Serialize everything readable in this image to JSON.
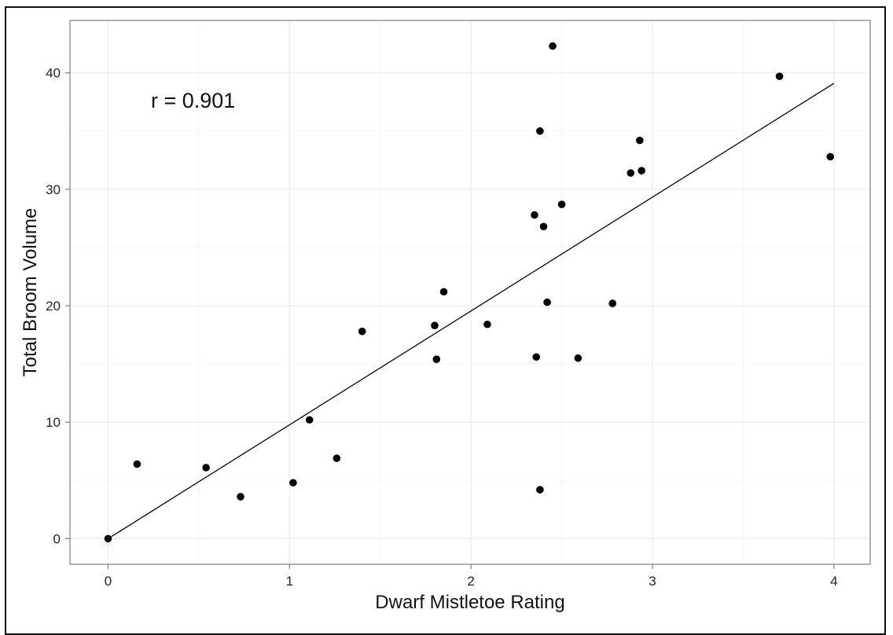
{
  "chart_data": {
    "type": "scatter",
    "title": "",
    "xlabel": "Dwarf Mistletoe Rating",
    "ylabel": "Total Broom Volume",
    "xlim": [
      -0.21,
      4.2
    ],
    "ylim": [
      -2.2,
      44.5
    ],
    "x_ticks": [
      0,
      1,
      2,
      3,
      4
    ],
    "y_ticks": [
      0,
      10,
      20,
      30,
      40
    ],
    "grid": true,
    "annotation": "r = 0.901",
    "points": [
      {
        "x": 0.0,
        "y": 0.0
      },
      {
        "x": 0.16,
        "y": 6.4
      },
      {
        "x": 0.54,
        "y": 6.1
      },
      {
        "x": 0.73,
        "y": 3.6
      },
      {
        "x": 1.02,
        "y": 4.8
      },
      {
        "x": 1.11,
        "y": 10.2
      },
      {
        "x": 1.26,
        "y": 6.9
      },
      {
        "x": 1.4,
        "y": 17.8
      },
      {
        "x": 1.8,
        "y": 18.3
      },
      {
        "x": 1.81,
        "y": 15.4
      },
      {
        "x": 1.85,
        "y": 21.2
      },
      {
        "x": 2.09,
        "y": 18.4
      },
      {
        "x": 2.35,
        "y": 27.8
      },
      {
        "x": 2.36,
        "y": 15.6
      },
      {
        "x": 2.38,
        "y": 35.0
      },
      {
        "x": 2.38,
        "y": 4.2
      },
      {
        "x": 2.4,
        "y": 26.8
      },
      {
        "x": 2.42,
        "y": 20.3
      },
      {
        "x": 2.45,
        "y": 42.3
      },
      {
        "x": 2.5,
        "y": 28.7
      },
      {
        "x": 2.59,
        "y": 15.5
      },
      {
        "x": 2.78,
        "y": 20.2
      },
      {
        "x": 2.88,
        "y": 31.4
      },
      {
        "x": 2.93,
        "y": 34.2
      },
      {
        "x": 2.94,
        "y": 31.6
      },
      {
        "x": 3.7,
        "y": 39.7
      },
      {
        "x": 3.98,
        "y": 32.8
      }
    ],
    "fit_line": {
      "x": [
        0,
        4
      ],
      "y": [
        0,
        39.1
      ]
    }
  },
  "colors": {
    "point": "#000000",
    "line": "#000000",
    "grid_major": "#ebebeb",
    "grid_minor": "#f5f5f5",
    "panel_border": "#7f7f7f",
    "tick": "#7f7f7f"
  }
}
